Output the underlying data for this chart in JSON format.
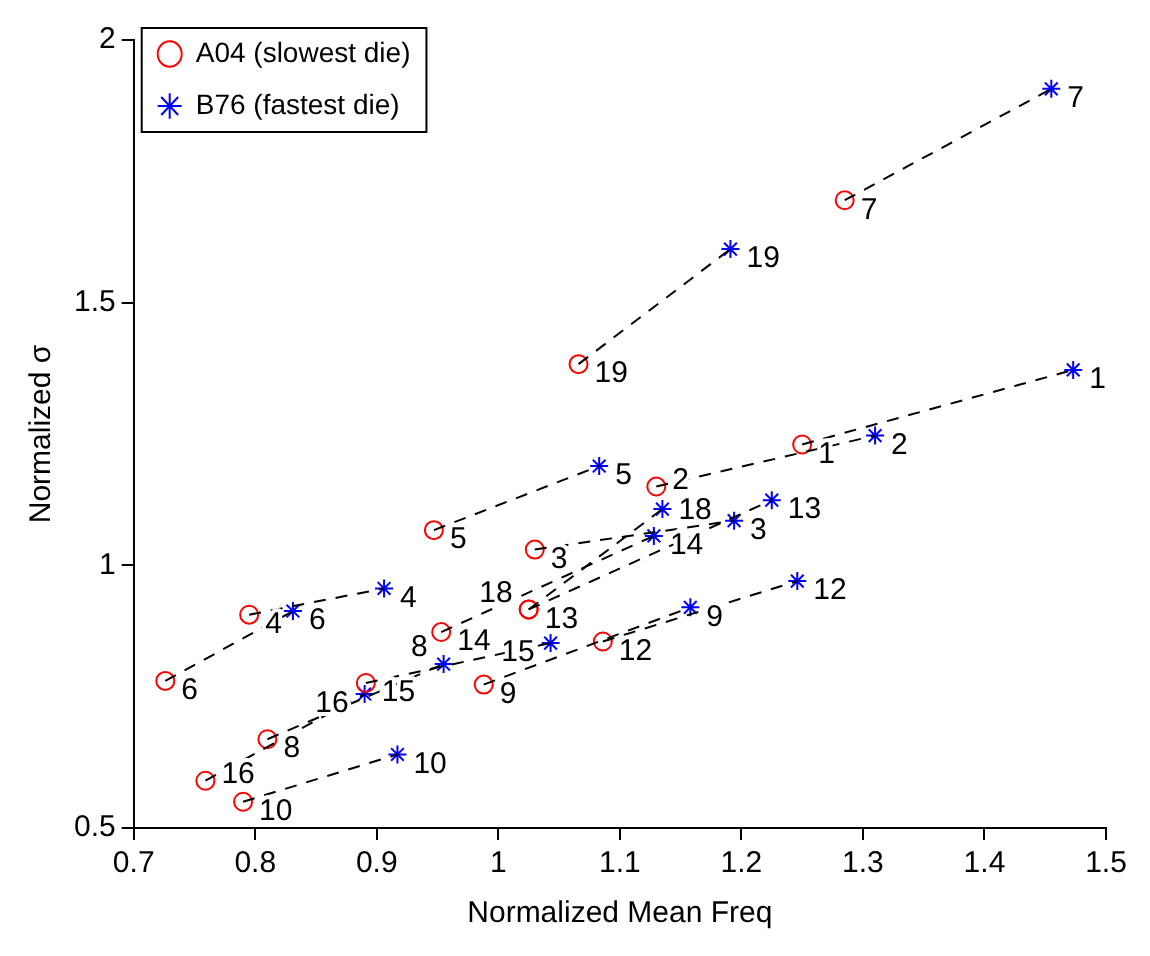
{
  "chart_data": {
    "type": "scatter",
    "xlabel": "Normalized Mean Freq",
    "ylabel": "Normalized σ",
    "xlim": [
      0.7,
      1.5
    ],
    "xticks": [
      0.7,
      0.8,
      0.9,
      1,
      1.1,
      1.2,
      1.3,
      1.4,
      1.5
    ],
    "ylim": [
      0.5,
      2
    ],
    "yticks": [
      0.5,
      1,
      1.5,
      2
    ],
    "grid": false,
    "legend": "top left",
    "series": [
      {
        "type": "line",
        "color": "#000000",
        "line_style": "dashed",
        "marker": "none",
        "x": [
          1.25,
          1.473
        ],
        "values": [
          1.23,
          1.372
        ]
      },
      {
        "type": "line",
        "color": "#000000",
        "line_style": "dashed",
        "marker": "none",
        "x": [
          1.13,
          1.31
        ],
        "values": [
          1.15,
          1.247
        ]
      },
      {
        "type": "line",
        "color": "#000000",
        "line_style": "dashed",
        "marker": "none",
        "x": [
          1.03,
          1.194
        ],
        "values": [
          1.03,
          1.085
        ]
      },
      {
        "type": "line",
        "color": "#000000",
        "line_style": "dashed",
        "marker": "none",
        "x": [
          0.795,
          0.906
        ],
        "values": [
          0.906,
          0.956
        ]
      },
      {
        "type": "line",
        "color": "#000000",
        "line_style": "dashed",
        "marker": "none",
        "x": [
          0.947,
          1.083
        ],
        "values": [
          1.067,
          1.189
        ]
      },
      {
        "type": "line",
        "color": "#000000",
        "line_style": "dashed",
        "marker": "none",
        "x": [
          0.726,
          0.831
        ],
        "values": [
          0.78,
          0.913
        ]
      },
      {
        "type": "line",
        "color": "#000000",
        "line_style": "dashed",
        "marker": "none",
        "x": [
          1.285,
          1.455
        ],
        "values": [
          1.695,
          1.907
        ]
      },
      {
        "type": "line",
        "color": "#000000",
        "line_style": "dashed",
        "marker": "none",
        "x": [
          0.81,
          0.955
        ],
        "values": [
          0.669,
          0.812
        ]
      },
      {
        "type": "line",
        "color": "#000000",
        "line_style": "dashed",
        "marker": "none",
        "x": [
          0.988,
          1.158
        ],
        "values": [
          0.773,
          0.92
        ]
      },
      {
        "type": "line",
        "color": "#000000",
        "line_style": "dashed",
        "marker": "none",
        "x": [
          0.79,
          0.917
        ],
        "values": [
          0.55,
          0.64
        ]
      },
      {
        "type": "line",
        "color": "#000000",
        "line_style": "dashed",
        "marker": "none",
        "x": [
          1.086,
          1.246
        ],
        "values": [
          0.855,
          0.97
        ]
      },
      {
        "type": "line",
        "color": "#000000",
        "line_style": "dashed",
        "marker": "none",
        "x": [
          1.025,
          1.225
        ],
        "values": [
          0.916,
          1.124
        ]
      },
      {
        "type": "line",
        "color": "#000000",
        "line_style": "dashed",
        "marker": "none",
        "x": [
          0.953,
          1.128
        ],
        "values": [
          0.873,
          1.056
        ]
      },
      {
        "type": "line",
        "color": "#000000",
        "line_style": "dashed",
        "marker": "none",
        "x": [
          0.891,
          1.043
        ],
        "values": [
          0.776,
          0.852
        ]
      },
      {
        "type": "line",
        "color": "#000000",
        "line_style": "dashed",
        "marker": "none",
        "x": [
          0.759,
          0.89
        ],
        "values": [
          0.59,
          0.755
        ]
      },
      {
        "type": "line",
        "color": "#000000",
        "line_style": "dashed",
        "marker": "none",
        "x": [
          1.025,
          1.135
        ],
        "values": [
          0.916,
          1.107
        ]
      },
      {
        "type": "line",
        "color": "#000000",
        "line_style": "dashed",
        "marker": "none",
        "x": [
          1.066,
          1.191
        ],
        "values": [
          1.383,
          1.602
        ]
      },
      {
        "type": "scatter",
        "name": "A04 (slowest die)",
        "color": "#ff0000",
        "marker": "circle",
        "x": [
          1.25,
          1.13,
          1.03,
          0.795,
          0.947,
          0.726,
          1.285,
          0.81,
          0.988,
          0.79,
          1.086,
          1.025,
          0.953,
          0.891,
          0.759,
          1.025,
          1.066
        ],
        "values": [
          1.23,
          1.15,
          1.03,
          0.906,
          1.067,
          0.78,
          1.695,
          0.669,
          0.773,
          0.55,
          0.855,
          0.916,
          0.873,
          0.776,
          0.59,
          0.916,
          1.383
        ]
      },
      {
        "type": "scatter",
        "name": "B76 (fastest die)",
        "color": "#0000ff",
        "marker": "cross",
        "x": [
          1.473,
          1.31,
          1.194,
          0.906,
          1.083,
          0.831,
          1.455,
          0.955,
          1.158,
          0.917,
          1.246,
          1.225,
          1.128,
          1.043,
          0.89,
          1.135,
          1.191
        ],
        "values": [
          1.372,
          1.247,
          1.085,
          0.956,
          1.189,
          0.913,
          1.907,
          0.812,
          0.92,
          0.64,
          0.97,
          1.124,
          1.056,
          0.852,
          0.755,
          1.107,
          1.602
        ]
      }
    ],
    "annotations": [
      {
        "text": "1",
        "x": 1.25,
        "y": 1.23
      },
      {
        "text": "2",
        "x": 1.13,
        "y": 1.15
      },
      {
        "text": "3",
        "x": 1.03,
        "y": 1.03
      },
      {
        "text": "4",
        "x": 0.795,
        "y": 0.906
      },
      {
        "text": "5",
        "x": 0.947,
        "y": 1.067
      },
      {
        "text": "6",
        "x": 0.726,
        "y": 0.78
      },
      {
        "text": "7",
        "x": 1.285,
        "y": 1.695
      },
      {
        "text": "8",
        "x": 0.81,
        "y": 0.669
      },
      {
        "text": "9",
        "x": 0.988,
        "y": 0.773
      },
      {
        "text": "10",
        "x": 0.79,
        "y": 0.55
      },
      {
        "text": "12",
        "x": 1.086,
        "y": 0.855
      },
      {
        "text": "13",
        "x": 1.025,
        "y": 0.916
      },
      {
        "text": "14",
        "x": 0.953,
        "y": 0.873
      },
      {
        "text": "15",
        "x": 0.891,
        "y": 0.776
      },
      {
        "text": "16",
        "x": 0.759,
        "y": 0.59
      },
      {
        "text": "18",
        "x": 1.025,
        "y": 0.916
      },
      {
        "text": "19",
        "x": 1.066,
        "y": 1.383
      },
      {
        "text": "1",
        "x": 1.473,
        "y": 1.372
      },
      {
        "text": "2",
        "x": 1.31,
        "y": 1.247
      },
      {
        "text": "3",
        "x": 1.194,
        "y": 1.085
      },
      {
        "text": "4",
        "x": 0.906,
        "y": 0.956
      },
      {
        "text": "5",
        "x": 1.083,
        "y": 1.189
      },
      {
        "text": "6",
        "x": 0.831,
        "y": 0.913
      },
      {
        "text": "7",
        "x": 1.455,
        "y": 1.907
      },
      {
        "text": "8",
        "x": 0.955,
        "y": 0.812
      },
      {
        "text": "9",
        "x": 1.158,
        "y": 0.92
      },
      {
        "text": "10",
        "x": 0.917,
        "y": 0.64
      },
      {
        "text": "12",
        "x": 1.246,
        "y": 0.97
      },
      {
        "text": "13",
        "x": 1.225,
        "y": 1.124
      },
      {
        "text": "14",
        "x": 1.128,
        "y": 1.056
      },
      {
        "text": "15",
        "x": 1.043,
        "y": 0.852
      },
      {
        "text": "16",
        "x": 0.89,
        "y": 0.755
      },
      {
        "text": "18",
        "x": 1.135,
        "y": 1.107
      },
      {
        "text": "19",
        "x": 1.191,
        "y": 1.602
      }
    ]
  }
}
